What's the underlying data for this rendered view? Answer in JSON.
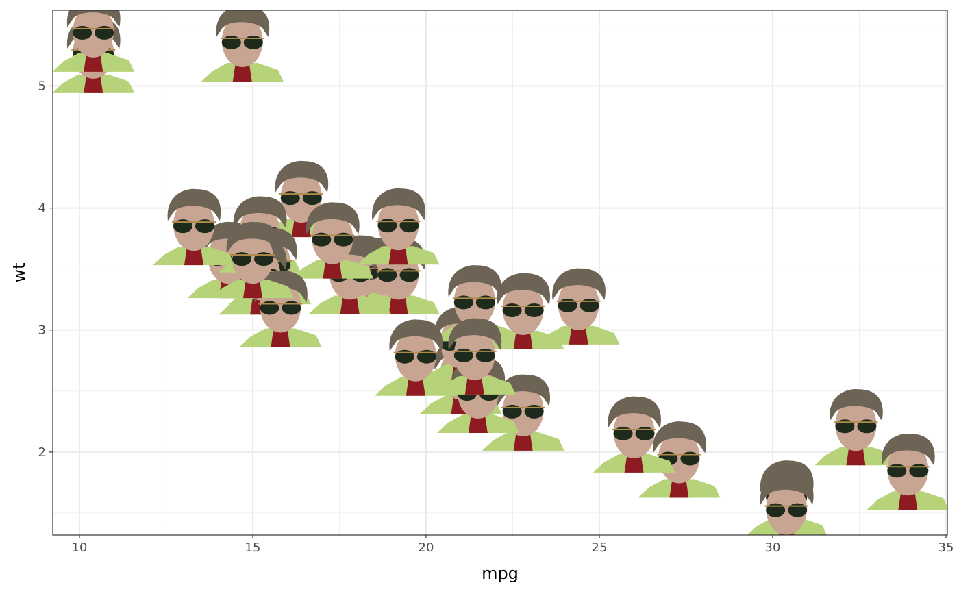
{
  "chart_data": {
    "type": "scatter",
    "x_label": "mpg",
    "y_label": "wt",
    "x": [
      21.0,
      21.0,
      22.8,
      21.4,
      18.7,
      18.1,
      14.3,
      24.4,
      22.8,
      19.2,
      17.8,
      16.4,
      17.3,
      15.2,
      10.4,
      10.4,
      14.7,
      32.4,
      30.4,
      33.9,
      21.5,
      15.5,
      15.2,
      13.3,
      19.2,
      27.3,
      26.0,
      30.4,
      15.8,
      19.7,
      15.0,
      21.4
    ],
    "values": [
      2.62,
      2.875,
      2.32,
      3.215,
      3.44,
      3.46,
      3.57,
      3.19,
      3.15,
      3.44,
      3.44,
      4.07,
      3.73,
      3.78,
      5.25,
      5.424,
      5.345,
      2.2,
      1.615,
      1.835,
      2.465,
      3.52,
      3.435,
      3.84,
      3.845,
      1.935,
      2.14,
      1.513,
      3.17,
      2.77,
      3.57,
      2.78
    ],
    "xlim": [
      9.23,
      35.04
    ],
    "ylim": [
      1.32,
      5.62
    ],
    "xticks": [
      10,
      15,
      20,
      25,
      30,
      35
    ],
    "yticks": [
      2,
      3,
      4,
      5
    ],
    "grid": true
  }
}
